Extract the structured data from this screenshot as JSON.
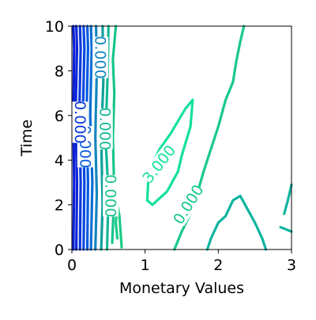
{
  "chart_data": {
    "type": "contour",
    "xlabel": "Monetary Values",
    "ylabel": "Time",
    "xlim": [
      0,
      3
    ],
    "ylim": [
      0,
      10
    ],
    "xticks": [
      0,
      1,
      2,
      3
    ],
    "yticks": [
      0,
      2,
      4,
      6,
      8,
      10
    ],
    "grid": false,
    "legend": "none",
    "colormap_hint": [
      "#0a1fd6",
      "#0050e0",
      "#1a7fc8",
      "#109ea0",
      "#10b890",
      "#18cc8e",
      "#14e0a0"
    ],
    "contours": [
      {
        "level": "",
        "color": "#0a1fd6",
        "points": [
          [
            0.02,
            0
          ],
          [
            0.03,
            3
          ],
          [
            0.02,
            6
          ],
          [
            0.03,
            9
          ],
          [
            0.02,
            10
          ]
        ]
      },
      {
        "level": "",
        "color": "#0a26d8",
        "points": [
          [
            0.06,
            0
          ],
          [
            0.07,
            3
          ],
          [
            0.05,
            6
          ],
          [
            0.07,
            9
          ],
          [
            0.06,
            10
          ]
        ]
      },
      {
        "level": "",
        "color": "#0838dc",
        "points": [
          [
            0.11,
            0
          ],
          [
            0.12,
            3
          ],
          [
            0.1,
            6
          ],
          [
            0.12,
            9
          ],
          [
            0.11,
            10
          ]
        ]
      },
      {
        "level": "",
        "color": "#0548e0",
        "points": [
          [
            0.16,
            0
          ],
          [
            0.17,
            3
          ],
          [
            0.15,
            6
          ],
          [
            0.17,
            9
          ],
          [
            0.16,
            10
          ]
        ]
      },
      {
        "level": "",
        "color": "#055ae0",
        "points": [
          [
            0.21,
            0
          ],
          [
            0.22,
            3
          ],
          [
            0.2,
            6
          ],
          [
            0.22,
            9
          ],
          [
            0.21,
            10
          ]
        ]
      },
      {
        "level": "",
        "color": "#0a6ed6",
        "points": [
          [
            0.26,
            0
          ],
          [
            0.28,
            3
          ],
          [
            0.25,
            6
          ],
          [
            0.27,
            9
          ],
          [
            0.26,
            10
          ]
        ]
      },
      {
        "level": "",
        "color": "#1285c0",
        "points": [
          [
            0.32,
            0
          ],
          [
            0.34,
            2.5
          ],
          [
            0.32,
            5
          ],
          [
            0.34,
            8
          ],
          [
            0.33,
            10
          ]
        ]
      },
      {
        "level": "",
        "color": "#10a09a",
        "points": [
          [
            0.4,
            0
          ],
          [
            0.42,
            2
          ],
          [
            0.4,
            5
          ],
          [
            0.43,
            7.5
          ],
          [
            0.42,
            10
          ]
        ]
      },
      {
        "level": "",
        "color": "#12b896",
        "points": [
          [
            0.48,
            0
          ],
          [
            0.5,
            2.5
          ],
          [
            0.46,
            5
          ],
          [
            0.49,
            8
          ],
          [
            0.5,
            10
          ]
        ]
      },
      {
        "level": "",
        "color": "#16c48e",
        "points": [
          [
            0.55,
            0.3
          ],
          [
            0.58,
            2.5
          ],
          [
            0.56,
            5
          ],
          [
            0.58,
            7
          ],
          [
            0.56,
            8.5
          ],
          [
            0.6,
            10
          ]
        ]
      },
      {
        "level": "",
        "color": "#1acc88",
        "points": [
          [
            0.68,
            0.1
          ],
          [
            0.65,
            1.5
          ],
          [
            0.62,
            2.0
          ],
          [
            0.6,
            1.2
          ],
          [
            0.62,
            0.5
          ]
        ]
      },
      {
        "level": "3.000",
        "color": "#14e0a0",
        "points": [
          [
            1.03,
            2.2
          ],
          [
            1.05,
            3.5
          ],
          [
            1.2,
            4.5
          ],
          [
            1.35,
            5.2
          ],
          [
            1.55,
            6.3
          ],
          [
            1.65,
            6.7
          ],
          [
            1.62,
            5.5
          ],
          [
            1.5,
            4.2
          ],
          [
            1.45,
            3.5
          ],
          [
            1.3,
            2.6
          ],
          [
            1.1,
            2.0
          ],
          [
            1.03,
            2.2
          ]
        ]
      },
      {
        "level": "0.000",
        "color": "#18c890",
        "points": [
          [
            1.4,
            0.0
          ],
          [
            1.5,
            0.8
          ],
          [
            1.65,
            1.8
          ],
          [
            1.8,
            3.5
          ],
          [
            2.0,
            5.5
          ],
          [
            2.1,
            6.7
          ],
          [
            2.2,
            7.5
          ],
          [
            2.25,
            8.5
          ],
          [
            2.3,
            9.3
          ],
          [
            2.35,
            10
          ]
        ]
      },
      {
        "level": "",
        "color": "#10b4a0",
        "points": [
          [
            1.85,
            0.0
          ],
          [
            1.9,
            0.5
          ],
          [
            2.0,
            1.2
          ],
          [
            2.1,
            1.5
          ],
          [
            2.2,
            2.2
          ],
          [
            2.3,
            2.4
          ],
          [
            2.4,
            1.8
          ],
          [
            2.5,
            1.2
          ],
          [
            2.6,
            0.5
          ],
          [
            2.65,
            0.0
          ]
        ]
      },
      {
        "level": "",
        "color": "#10b4a0",
        "points": [
          [
            2.9,
            1.6
          ],
          [
            2.95,
            2.2
          ],
          [
            3.0,
            2.9
          ]
        ]
      },
      {
        "level": "",
        "color": "#10b4a0",
        "points": [
          [
            2.85,
            1.0
          ],
          [
            3.0,
            0.8
          ]
        ]
      }
    ],
    "labels": [
      {
        "text": "3.000",
        "x": 1.2,
        "y": 3.8,
        "rotation_deg": -52,
        "color": "#14e0a0"
      },
      {
        "text": "0.000",
        "x": 1.6,
        "y": 2.0,
        "rotation_deg": -58,
        "color": "#18c890"
      },
      {
        "text": "0.000",
        "x": 0.52,
        "y": 2.4,
        "rotation_deg": 90,
        "color": "#16c48e"
      },
      {
        "text": "0.000",
        "x": 0.44,
        "y": 5.4,
        "rotation_deg": 90,
        "color": "#12b896"
      },
      {
        "text": "0.000",
        "x": 0.38,
        "y": 8.6,
        "rotation_deg": 90,
        "color": "#1285c0"
      },
      {
        "text": "0.000",
        "x": 0.17,
        "y": 4.6,
        "rotation_deg": 90,
        "color": "#055ae0"
      },
      {
        "text": "0.000",
        "x": 0.1,
        "y": 5.7,
        "rotation_deg": 90,
        "color": "#0838dc"
      }
    ]
  }
}
